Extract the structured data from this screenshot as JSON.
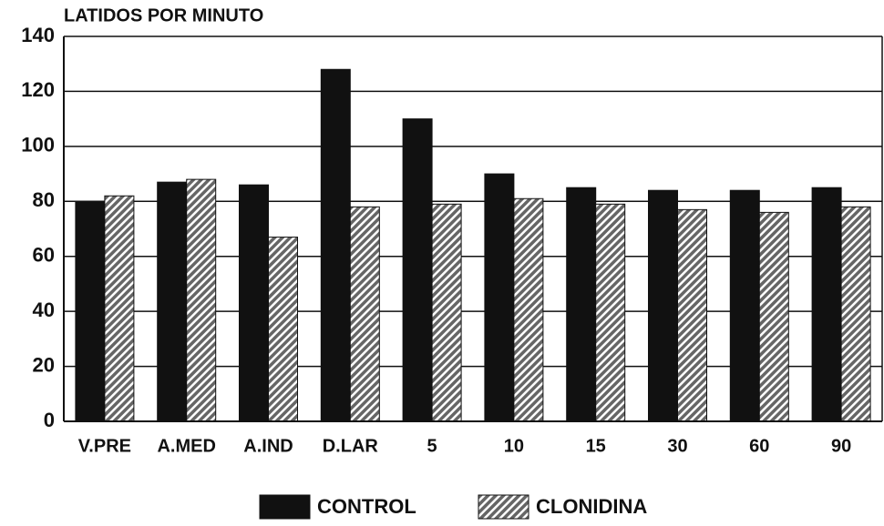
{
  "chart_data": {
    "type": "bar",
    "title": "LATIDOS POR MINUTO",
    "categories": [
      "V.PRE",
      "A.MED",
      "A.IND",
      "D.LAR",
      "5",
      "10",
      "15",
      "30",
      "60",
      "90"
    ],
    "series": [
      {
        "name": "CONTROL",
        "color": "#111111",
        "values": [
          80,
          87,
          86,
          128,
          110,
          90,
          85,
          84,
          84,
          85
        ]
      },
      {
        "name": "CLONIDINA",
        "color": "#666666",
        "values": [
          82,
          88,
          67,
          78,
          79,
          81,
          79,
          77,
          76,
          78
        ]
      }
    ],
    "ylim": [
      0,
      140
    ],
    "yticks": [
      0,
      20,
      40,
      60,
      80,
      100,
      120,
      140
    ],
    "grid": true,
    "legend": "bottom"
  }
}
